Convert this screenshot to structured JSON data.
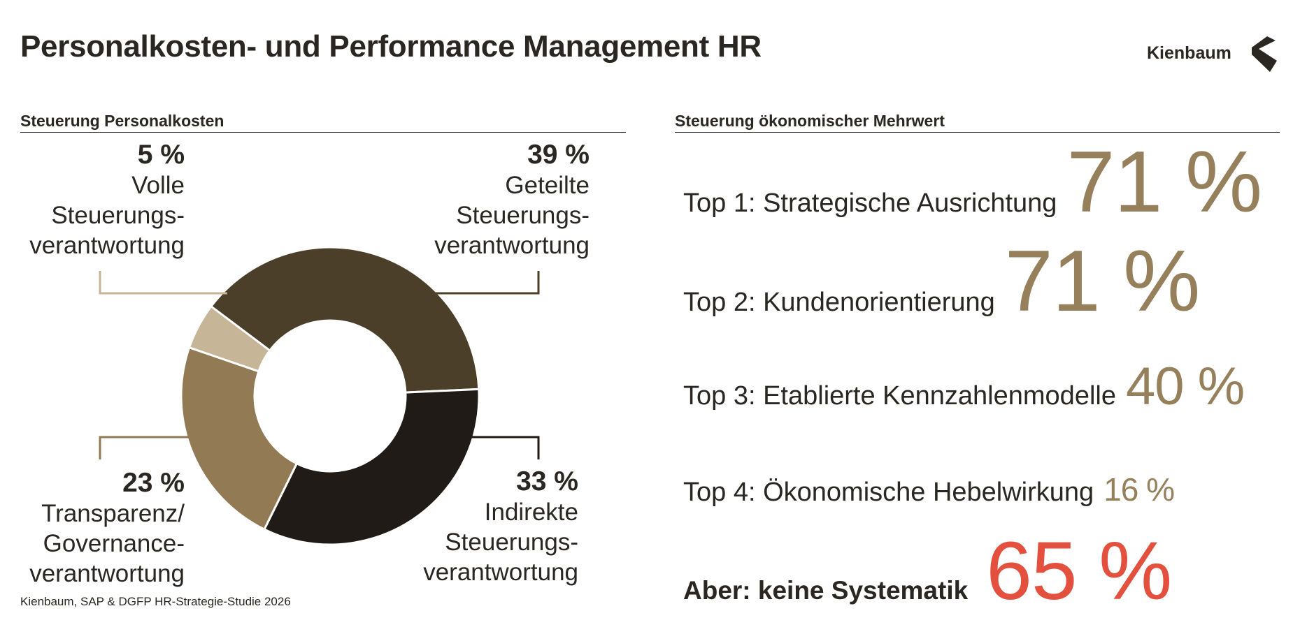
{
  "header": {
    "title": "Personalkosten- und Performance Management HR",
    "brand": "Kienbaum",
    "brand_icon": "kienbaum-logo-icon"
  },
  "left_section": {
    "title": "Steuerung Personalkosten"
  },
  "right_section": {
    "title": "Steuerung ökonomischer Mehrwert"
  },
  "source": "Kienbaum, SAP & DGFP HR-Strategie-Studie 2026",
  "chart_data": [
    {
      "type": "pie",
      "variant": "donut",
      "title": "Steuerung Personalkosten",
      "slices": [
        {
          "label": "Geteilte Steuerungsverantwortung",
          "label_lines": [
            "Geteilte",
            "Steuerungs-",
            "verantwortung"
          ],
          "pct_text": "39 %",
          "value": 39,
          "color": "#4c3f2a"
        },
        {
          "label": "Indirekte Steuerungsverantwortung",
          "label_lines": [
            "Indirekte",
            "Steuerungs-",
            "verantwortung"
          ],
          "pct_text": "33 %",
          "value": 33,
          "color": "#201b16"
        },
        {
          "label": "Transparenz/Governanceverantwortung",
          "label_lines": [
            "Transparenz/",
            "Governance-",
            "verantwortung"
          ],
          "pct_text": "23 %",
          "value": 23,
          "color": "#927a55"
        },
        {
          "label": "Volle Steuerungsverantwortung",
          "label_lines": [
            "Volle",
            "Steuerungs-",
            "verantwortung"
          ],
          "pct_text": "5 %",
          "value": 5,
          "color": "#c7b597"
        }
      ]
    },
    {
      "type": "table",
      "title": "Steuerung ökonomischer Mehrwert",
      "rows": [
        {
          "label": "Top 1: Strategische Ausrichtung",
          "value": 71,
          "value_text": "71 %",
          "color": "#96805b"
        },
        {
          "label": "Top 2: Kundenorientierung",
          "value": 71,
          "value_text": "71 %",
          "color": "#96805b"
        },
        {
          "label": "Top 3: Etablierte Kennzahlenmodelle",
          "value": 40,
          "value_text": "40 %",
          "color": "#96805b"
        },
        {
          "label": "Top 4: Ökonomische Hebelwirkung",
          "value": 16,
          "value_text": "16 %",
          "color": "#96805b"
        },
        {
          "label": "Aber: keine Systematik",
          "value": 65,
          "value_text": "65 %",
          "color": "#e4503e",
          "emphasis": true
        }
      ]
    }
  ]
}
